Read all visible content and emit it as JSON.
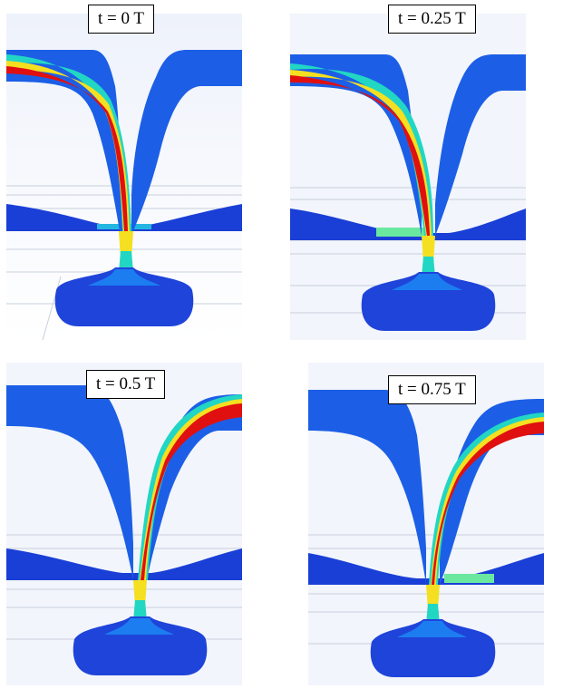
{
  "panels": [
    {
      "label": "t = 0 T"
    },
    {
      "label": "t = 0.25 T"
    },
    {
      "label": "t = 0.5 T"
    },
    {
      "label": "t = 0.75 T"
    }
  ],
  "colors": {
    "background": "#ffffff",
    "domain_low": "#1a3fd6",
    "domain_mid": "#1c7df0",
    "jet_core": "#e01010",
    "jet_mid": "#f4e020",
    "jet_edge": "#22d6c4",
    "chamber": "#1f44da",
    "grid": "#c8d0dc"
  }
}
